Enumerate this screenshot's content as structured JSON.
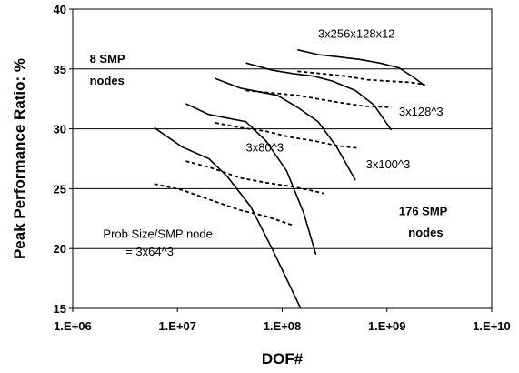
{
  "chart_data": {
    "type": "line",
    "xlabel": "DOF#",
    "ylabel": "Peak Performance Ratio: %",
    "x_scale": "log",
    "xlim": [
      1000000,
      10000000000
    ],
    "ylim": [
      15,
      40
    ],
    "x_ticks": [
      "1.E+06",
      "1.E+07",
      "1.E+08",
      "1.E+09",
      "1.E+10"
    ],
    "y_ticks": [
      "15",
      "20",
      "25",
      "30",
      "35",
      "40"
    ],
    "y_tick_values": [
      15,
      20,
      25,
      30,
      35,
      40
    ],
    "grid": "horizontal",
    "line_color": "#000000",
    "series": [
      {
        "style": "solid",
        "points": [
          [
            6000000,
            30.1
          ],
          [
            11000000,
            28.5
          ],
          [
            20000000,
            27.5
          ],
          [
            30000000,
            26.0
          ],
          [
            50000000,
            23.5
          ],
          [
            80000000,
            20.0
          ],
          [
            150000000,
            15.0
          ]
        ]
      },
      {
        "style": "solid",
        "points": [
          [
            12000000,
            32.1
          ],
          [
            20000000,
            31.2
          ],
          [
            30000000,
            30.9
          ],
          [
            45000000,
            30.6
          ],
          [
            70000000,
            29.0
          ],
          [
            110000000,
            26.5
          ],
          [
            160000000,
            23.0
          ],
          [
            210000000,
            19.5
          ]
        ]
      },
      {
        "style": "solid",
        "points": [
          [
            23000000,
            34.2
          ],
          [
            40000000,
            33.4
          ],
          [
            60000000,
            33.1
          ],
          [
            90000000,
            32.8
          ],
          [
            140000000,
            31.8
          ],
          [
            220000000,
            30.6
          ],
          [
            330000000,
            28.5
          ],
          [
            500000000,
            25.7
          ]
        ]
      },
      {
        "style": "solid",
        "points": [
          [
            45000000,
            35.5
          ],
          [
            80000000,
            34.9
          ],
          [
            130000000,
            34.6
          ],
          [
            200000000,
            34.4
          ],
          [
            300000000,
            34.0
          ],
          [
            500000000,
            33.2
          ],
          [
            750000000,
            32.0
          ],
          [
            1100000000,
            29.9
          ]
        ]
      },
      {
        "style": "solid",
        "points": [
          [
            140000000,
            36.6
          ],
          [
            220000000,
            36.2
          ],
          [
            350000000,
            36.0
          ],
          [
            550000000,
            35.8
          ],
          [
            850000000,
            35.5
          ],
          [
            1300000000,
            35.1
          ],
          [
            1800000000,
            34.3
          ],
          [
            2300000000,
            33.6
          ]
        ]
      },
      {
        "style": "dashed",
        "points": [
          [
            6000000,
            25.4
          ],
          [
            11000000,
            24.9
          ],
          [
            20000000,
            24.1
          ],
          [
            40000000,
            23.2
          ],
          [
            70000000,
            22.7
          ],
          [
            130000000,
            21.9
          ]
        ]
      },
      {
        "style": "dashed",
        "points": [
          [
            12000000,
            27.3
          ],
          [
            20000000,
            26.8
          ],
          [
            40000000,
            25.9
          ],
          [
            70000000,
            25.5
          ],
          [
            120000000,
            25.2
          ],
          [
            200000000,
            24.8
          ],
          [
            250000000,
            24.6
          ]
        ]
      },
      {
        "style": "dashed",
        "points": [
          [
            23000000,
            30.5
          ],
          [
            40000000,
            30.1
          ],
          [
            70000000,
            29.8
          ],
          [
            120000000,
            29.3
          ],
          [
            200000000,
            29.0
          ],
          [
            330000000,
            28.6
          ],
          [
            520000000,
            28.4
          ]
        ]
      },
      {
        "style": "dashed",
        "points": [
          [
            45000000,
            33.2
          ],
          [
            80000000,
            33.0
          ],
          [
            140000000,
            32.8
          ],
          [
            220000000,
            32.5
          ],
          [
            350000000,
            32.2
          ],
          [
            600000000,
            31.9
          ],
          [
            1100000000,
            31.8
          ]
        ]
      },
      {
        "style": "dashed",
        "points": [
          [
            140000000,
            34.8
          ],
          [
            250000000,
            34.6
          ],
          [
            400000000,
            34.4
          ],
          [
            650000000,
            34.1
          ],
          [
            1000000000,
            34.0
          ],
          [
            1600000000,
            33.9
          ],
          [
            2300000000,
            33.7
          ]
        ]
      }
    ],
    "annotations": [
      {
        "text": "3x256x128x12",
        "x": 220000000,
        "y": 37.6,
        "bold": false
      },
      {
        "text": "8 SMP",
        "x": 1450000,
        "y": 35.5,
        "bold": true
      },
      {
        "text": "nodes",
        "x": 1450000,
        "y": 33.7,
        "bold": true
      },
      {
        "text": "3x128^3",
        "x": 1300000000,
        "y": 31.1,
        "bold": false
      },
      {
        "text": "3x100^3",
        "x": 630000000,
        "y": 26.7,
        "bold": false
      },
      {
        "text": "3x80^3",
        "x": 45000000,
        "y": 28.1,
        "bold": false
      },
      {
        "text": "176 SMP",
        "x": 1300000000,
        "y": 22.8,
        "bold": true
      },
      {
        "text": "nodes",
        "x": 1600000000,
        "y": 21.0,
        "bold": true
      },
      {
        "text": "Prob Size/SMP node",
        "x": 1950000,
        "y": 20.9,
        "bold": false
      },
      {
        "text": "= 3x64^3",
        "x": 3200000,
        "y": 19.4,
        "bold": false
      }
    ]
  }
}
